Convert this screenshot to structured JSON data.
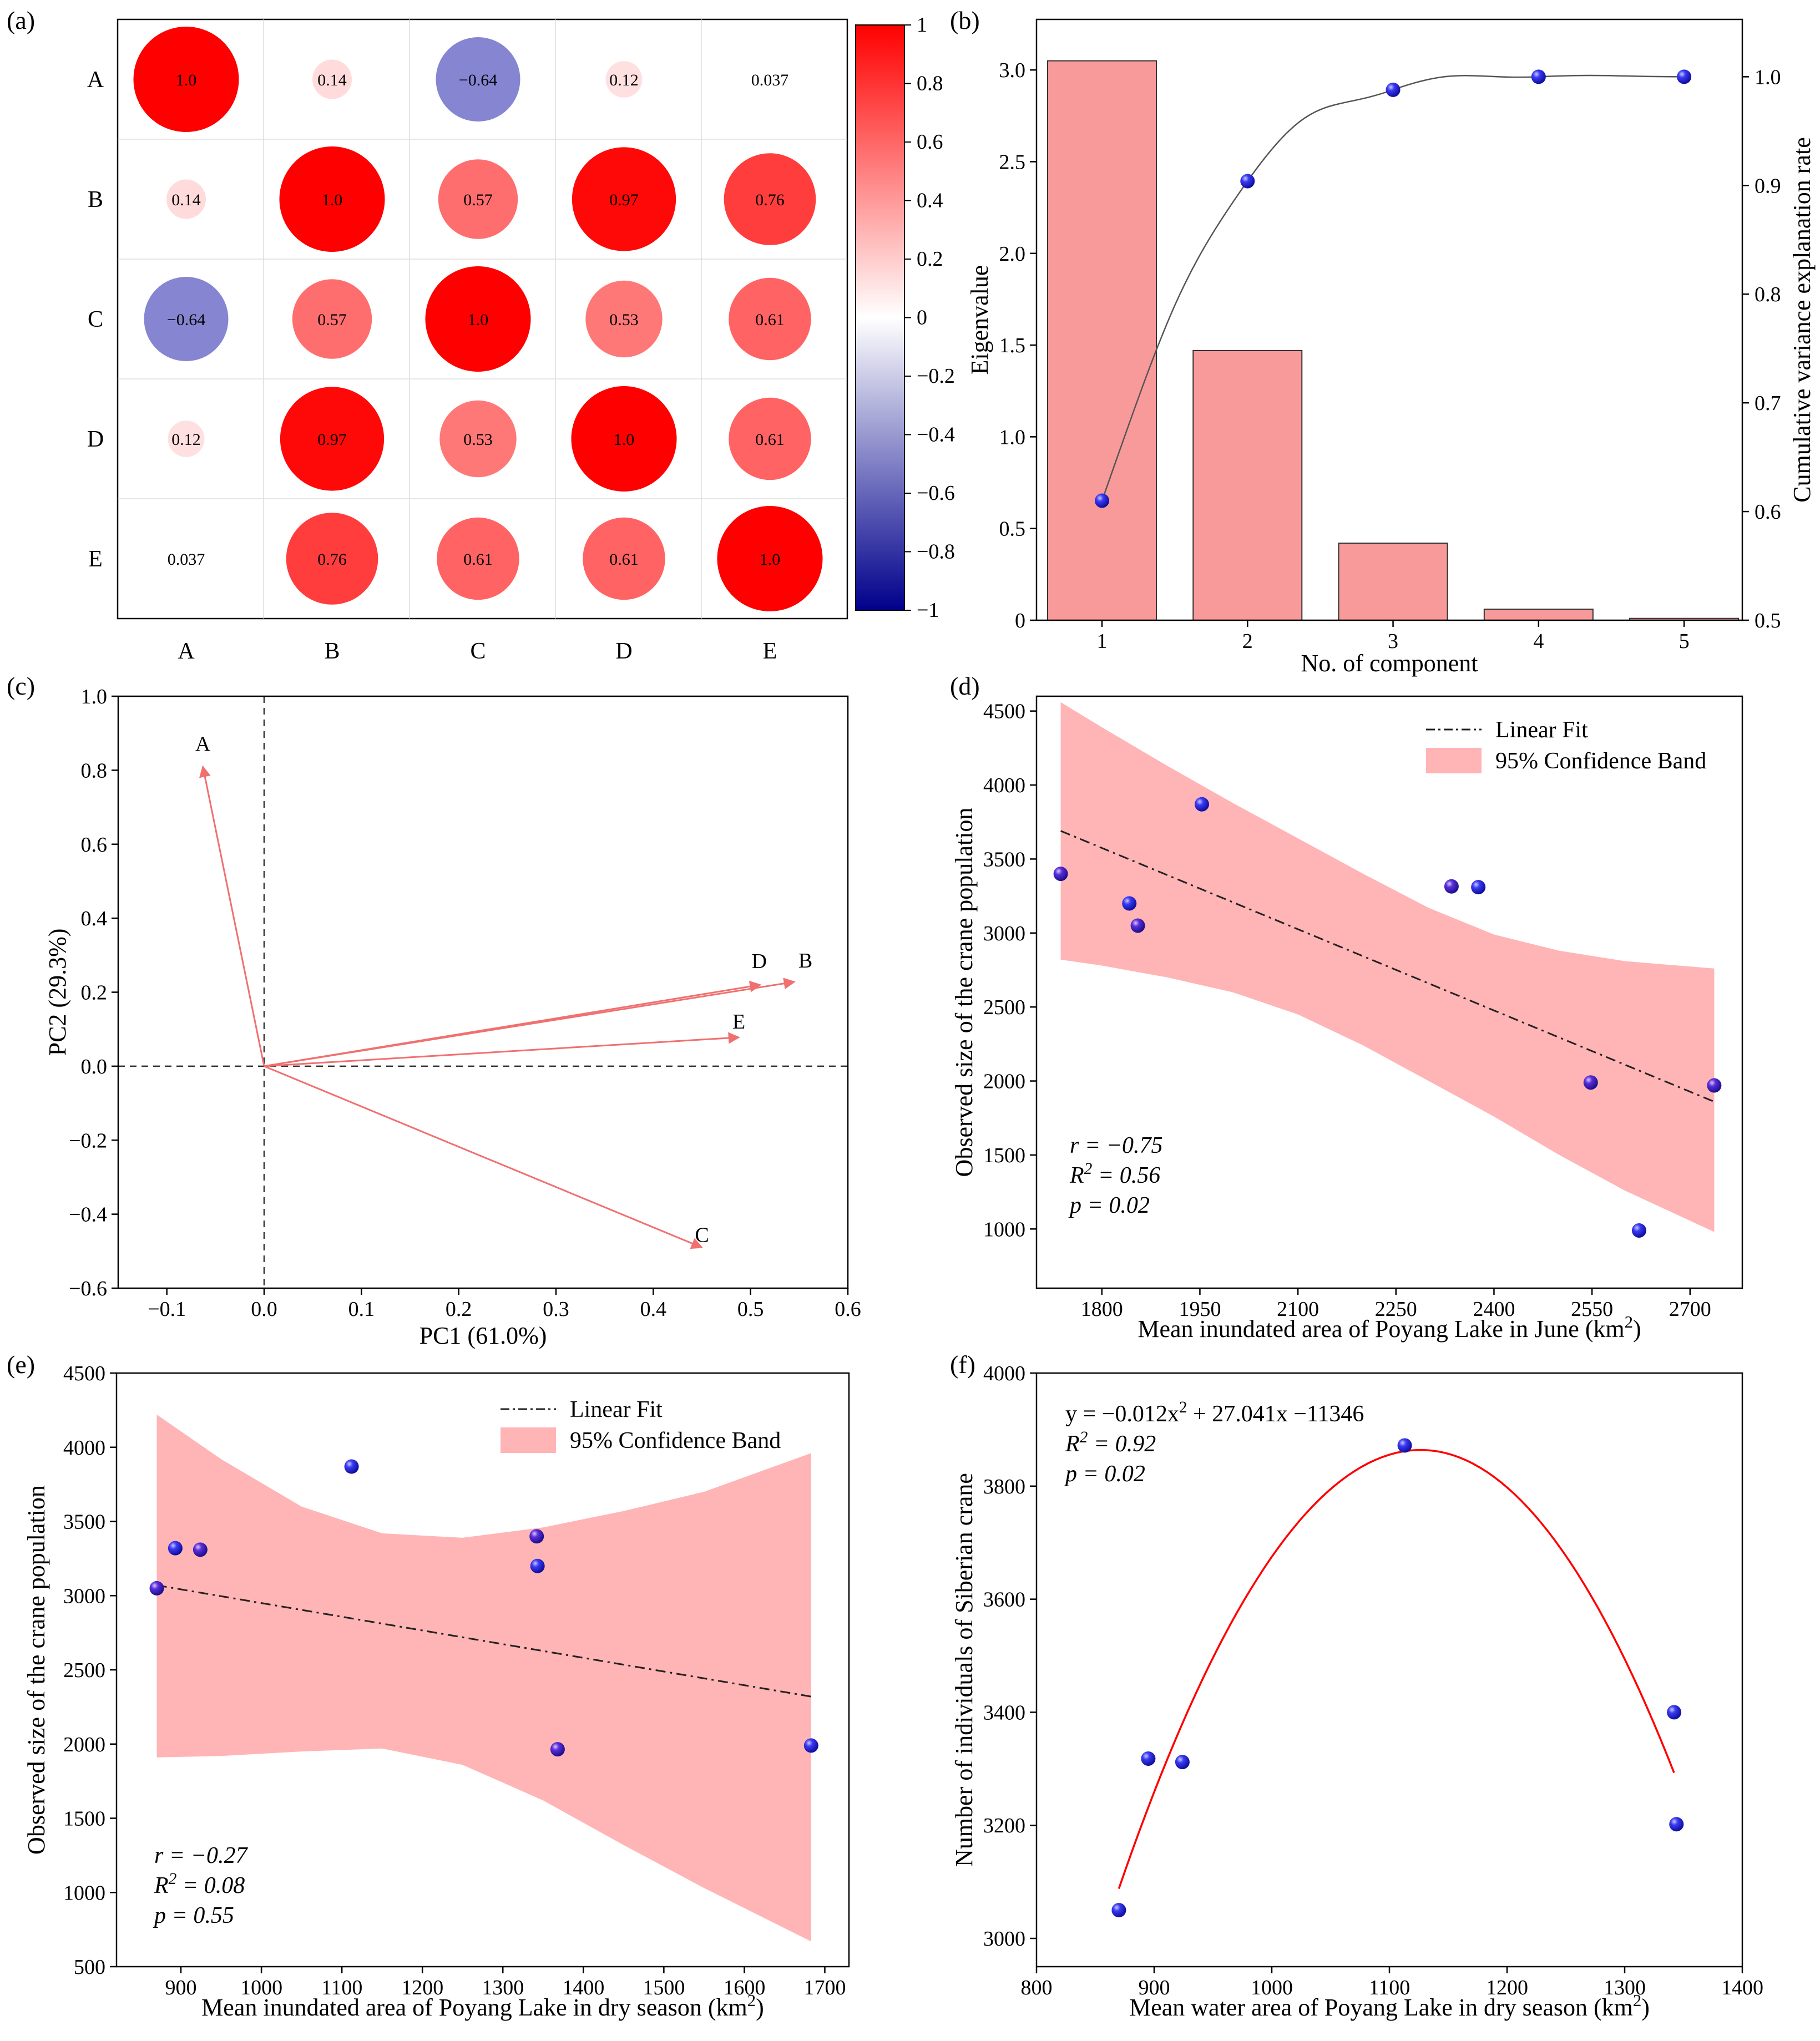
{
  "figure": {
    "panel_labels": [
      "(a)",
      "(b)",
      "(c)",
      "(d)",
      "(e)",
      "(f)"
    ]
  },
  "chart_data": [
    {
      "id": "a",
      "type": "heatmap",
      "title": "",
      "row_labels": [
        "A",
        "B",
        "C",
        "D",
        "E"
      ],
      "col_labels": [
        "A",
        "B",
        "C",
        "D",
        "E"
      ],
      "matrix": [
        [
          1.0,
          0.14,
          -0.64,
          0.12,
          0.037
        ],
        [
          0.14,
          1.0,
          0.57,
          0.97,
          0.76
        ],
        [
          -0.64,
          0.57,
          1.0,
          0.53,
          0.61
        ],
        [
          0.12,
          0.97,
          0.53,
          1.0,
          0.61
        ],
        [
          0.037,
          0.76,
          0.61,
          0.61,
          1.0
        ]
      ],
      "labels": [
        [
          "1.0",
          "0.14",
          "−0.64",
          "0.12",
          "0.037"
        ],
        [
          "0.14",
          "1.0",
          "0.57",
          "0.97",
          "0.76"
        ],
        [
          "−0.64",
          "0.57",
          "1.0",
          "0.53",
          "0.61"
        ],
        [
          "0.12",
          "0.97",
          "0.53",
          "1.0",
          "0.61"
        ],
        [
          "0.037",
          "0.76",
          "0.61",
          "0.61",
          "1.0"
        ]
      ],
      "colorbar": {
        "range": [
          -1,
          1
        ],
        "ticks": [
          1,
          0.8,
          0.6,
          0.4,
          0.2,
          0,
          -0.2,
          -0.4,
          -0.6,
          -0.8,
          -1
        ],
        "tick_labels": [
          "1",
          "0.8",
          "0.6",
          "0.4",
          "0.2",
          "0",
          "−0.2",
          "−0.4",
          "−0.6",
          "−0.8",
          "−1"
        ],
        "colors": {
          "positive": "#ff0000",
          "mid": "#ffffff",
          "negative": "#00008b"
        }
      }
    },
    {
      "id": "b",
      "type": "bar",
      "title": "",
      "xlabel": "No. of component",
      "ylabel": "Eigenvalue",
      "y2label": "Cumulative variance explanation rate",
      "categories": [
        "1",
        "2",
        "3",
        "4",
        "5"
      ],
      "x": [
        1,
        2,
        3,
        4,
        5
      ],
      "values": [
        3.05,
        1.47,
        0.42,
        0.06,
        0.01
      ],
      "ylim": [
        0,
        3.2
      ],
      "yticks": [
        0,
        0.5,
        1.0,
        1.5,
        2.0,
        2.5,
        3.0
      ],
      "ytick_labels": [
        "0",
        "0.5",
        "1.0",
        "1.5",
        "2.0",
        "2.5",
        "3.0"
      ],
      "cumulative": [
        0.61,
        0.904,
        0.988,
        1.0,
        1.0
      ],
      "y2lim": [
        0.5,
        1.04
      ],
      "y2ticks": [
        0.5,
        0.6,
        0.7,
        0.8,
        0.9,
        1.0
      ],
      "y2tick_labels": [
        "0.5",
        "0.6",
        "0.7",
        "0.8",
        "0.9",
        "1.0"
      ],
      "bar_color": "#f89a9a",
      "line_color": "#555555",
      "marker_color": "#1a1ad4"
    },
    {
      "id": "c",
      "type": "scatter",
      "subtype": "biplot",
      "xlabel": "PC1 (61.0%)",
      "ylabel": "PC2 (29.3%)",
      "xlim": [
        -0.15,
        0.6
      ],
      "ylim": [
        -0.6,
        1.0
      ],
      "xticks": [
        -0.1,
        0.0,
        0.1,
        0.2,
        0.3,
        0.4,
        0.5,
        0.6
      ],
      "xtick_labels": [
        "−0.1",
        "0.0",
        "0.1",
        "0.2",
        "0.3",
        "0.4",
        "0.5",
        "0.6"
      ],
      "yticks": [
        -0.6,
        -0.4,
        -0.2,
        0.0,
        0.2,
        0.4,
        0.6,
        0.8,
        1.0
      ],
      "ytick_labels": [
        "−0.6",
        "−0.4",
        "−0.2",
        "0.0",
        "0.2",
        "0.4",
        "0.6",
        "0.8",
        "1.0"
      ],
      "vectors": [
        {
          "label": "A",
          "x": -0.063,
          "y": 0.81
        },
        {
          "label": "D",
          "x": 0.51,
          "y": 0.22
        },
        {
          "label": "B",
          "x": 0.545,
          "y": 0.228
        },
        {
          "label": "E",
          "x": 0.488,
          "y": 0.078
        },
        {
          "label": "C",
          "x": 0.45,
          "y": -0.49
        }
      ],
      "arrow_color": "#f07070"
    },
    {
      "id": "d",
      "type": "scatter",
      "xlabel": "Mean inundated area of Poyang Lake in June (km²)",
      "ylabel": "Observed size of the crane population",
      "xlim": [
        1700,
        2780
      ],
      "ylim": [
        600,
        4600
      ],
      "xticks": [
        1800,
        1950,
        2100,
        2250,
        2400,
        2550,
        2700
      ],
      "xtick_labels": [
        "1800",
        "1950",
        "2100",
        "2250",
        "2400",
        "2550",
        "2700"
      ],
      "yticks": [
        1000,
        1500,
        2000,
        2500,
        3000,
        3500,
        4000,
        4500
      ],
      "ytick_labels": [
        "1000",
        "1500",
        "2000",
        "2500",
        "3000",
        "3500",
        "4000",
        "4500"
      ],
      "points": [
        {
          "x": 1737,
          "y": 3400
        },
        {
          "x": 1842,
          "y": 3200
        },
        {
          "x": 1855,
          "y": 3050
        },
        {
          "x": 1953,
          "y": 3870
        },
        {
          "x": 2335,
          "y": 3315
        },
        {
          "x": 2376,
          "y": 3310
        },
        {
          "x": 2548,
          "y": 1990
        },
        {
          "x": 2622,
          "y": 990
        },
        {
          "x": 2737,
          "y": 1970
        }
      ],
      "fit": {
        "x0": 1737,
        "y0": 3690,
        "x1": 2737,
        "y1": 1860
      },
      "band_upper": [
        [
          1737,
          4560
        ],
        [
          1800,
          4390
        ],
        [
          1900,
          4130
        ],
        [
          2000,
          3880
        ],
        [
          2100,
          3640
        ],
        [
          2200,
          3400
        ],
        [
          2300,
          3170
        ],
        [
          2400,
          2990
        ],
        [
          2500,
          2880
        ],
        [
          2600,
          2810
        ],
        [
          2737,
          2760
        ]
      ],
      "band_lower": [
        [
          1737,
          2820
        ],
        [
          1800,
          2780
        ],
        [
          1900,
          2700
        ],
        [
          2000,
          2600
        ],
        [
          2100,
          2450
        ],
        [
          2200,
          2240
        ],
        [
          2300,
          2000
        ],
        [
          2400,
          1760
        ],
        [
          2500,
          1500
        ],
        [
          2600,
          1260
        ],
        [
          2737,
          980
        ]
      ],
      "legend": [
        "Linear Fit",
        "95% Confidence Band"
      ],
      "stats": {
        "r": "r = −0.75",
        "r2": "R² = 0.56",
        "p": "p = 0.02"
      }
    },
    {
      "id": "e",
      "type": "scatter",
      "xlabel": "Mean inundated area of Poyang Lake in dry season (km²)",
      "ylabel": "Observed size of the crane population",
      "xlim": [
        820,
        1730
      ],
      "ylim": [
        500,
        4500
      ],
      "xticks": [
        900,
        1000,
        1100,
        1200,
        1300,
        1400,
        1500,
        1600,
        1700
      ],
      "xtick_labels": [
        "900",
        "1000",
        "1100",
        "1200",
        "1300",
        "1400",
        "1500",
        "1600",
        "1700"
      ],
      "yticks": [
        500,
        1000,
        1500,
        2000,
        2500,
        3000,
        3500,
        4000,
        4500
      ],
      "ytick_labels": [
        "500",
        "1000",
        "1500",
        "2000",
        "2500",
        "3000",
        "3500",
        "4000",
        "4500"
      ],
      "points": [
        {
          "x": 870,
          "y": 3050
        },
        {
          "x": 893,
          "y": 3320
        },
        {
          "x": 924,
          "y": 3310
        },
        {
          "x": 1112,
          "y": 3870
        },
        {
          "x": 1342,
          "y": 3400
        },
        {
          "x": 1343,
          "y": 3200
        },
        {
          "x": 1368,
          "y": 1965
        },
        {
          "x": 1683,
          "y": 1990
        }
      ],
      "fit": {
        "x0": 870,
        "y0": 3070,
        "x1": 1683,
        "y1": 2320
      },
      "band_upper": [
        [
          870,
          4220
        ],
        [
          950,
          3920
        ],
        [
          1050,
          3600
        ],
        [
          1150,
          3420
        ],
        [
          1250,
          3390
        ],
        [
          1350,
          3460
        ],
        [
          1450,
          3570
        ],
        [
          1550,
          3700
        ],
        [
          1683,
          3960
        ]
      ],
      "band_lower": [
        [
          870,
          1910
        ],
        [
          950,
          1920
        ],
        [
          1050,
          1950
        ],
        [
          1150,
          1970
        ],
        [
          1250,
          1860
        ],
        [
          1350,
          1620
        ],
        [
          1450,
          1320
        ],
        [
          1550,
          1030
        ],
        [
          1683,
          670
        ]
      ],
      "legend": [
        "Linear Fit",
        "95% Confidence Band"
      ],
      "stats": {
        "r": "r = −0.27",
        "r2": "R² = 0.08",
        "p": "p = 0.55"
      }
    },
    {
      "id": "f",
      "type": "scatter",
      "xlabel": "Mean water area of Poyang Lake in dry season (km²)",
      "ylabel": "Number of individuals of  Siberian crane",
      "xlim": [
        800,
        1400
      ],
      "ylim": [
        2950,
        4000
      ],
      "xticks": [
        800,
        900,
        1000,
        1100,
        1200,
        1300,
        1400
      ],
      "xtick_labels": [
        "800",
        "900",
        "1000",
        "1100",
        "1200",
        "1300",
        "1400"
      ],
      "yticks": [
        3000,
        3200,
        3400,
        3600,
        3800,
        4000
      ],
      "ytick_labels": [
        "3000",
        "3200",
        "3400",
        "3600",
        "3800",
        "4000"
      ],
      "points": [
        {
          "x": 870,
          "y": 3050
        },
        {
          "x": 895,
          "y": 3318
        },
        {
          "x": 924,
          "y": 3312
        },
        {
          "x": 1113,
          "y": 3872
        },
        {
          "x": 1342,
          "y": 3400
        },
        {
          "x": 1344,
          "y": 3202
        }
      ],
      "curve": {
        "a": -0.012,
        "b": 27.041,
        "c": -11346,
        "vertex_x": 1126.7,
        "vertex_y": 3864,
        "x0": 870,
        "y0": 3088,
        "x1": 1342,
        "y1": 3293
      },
      "stats": {
        "eq": "y = −0.012x² + 27.041x −11346",
        "r2": "R² = 0.92",
        "p": "p = 0.02"
      }
    }
  ]
}
